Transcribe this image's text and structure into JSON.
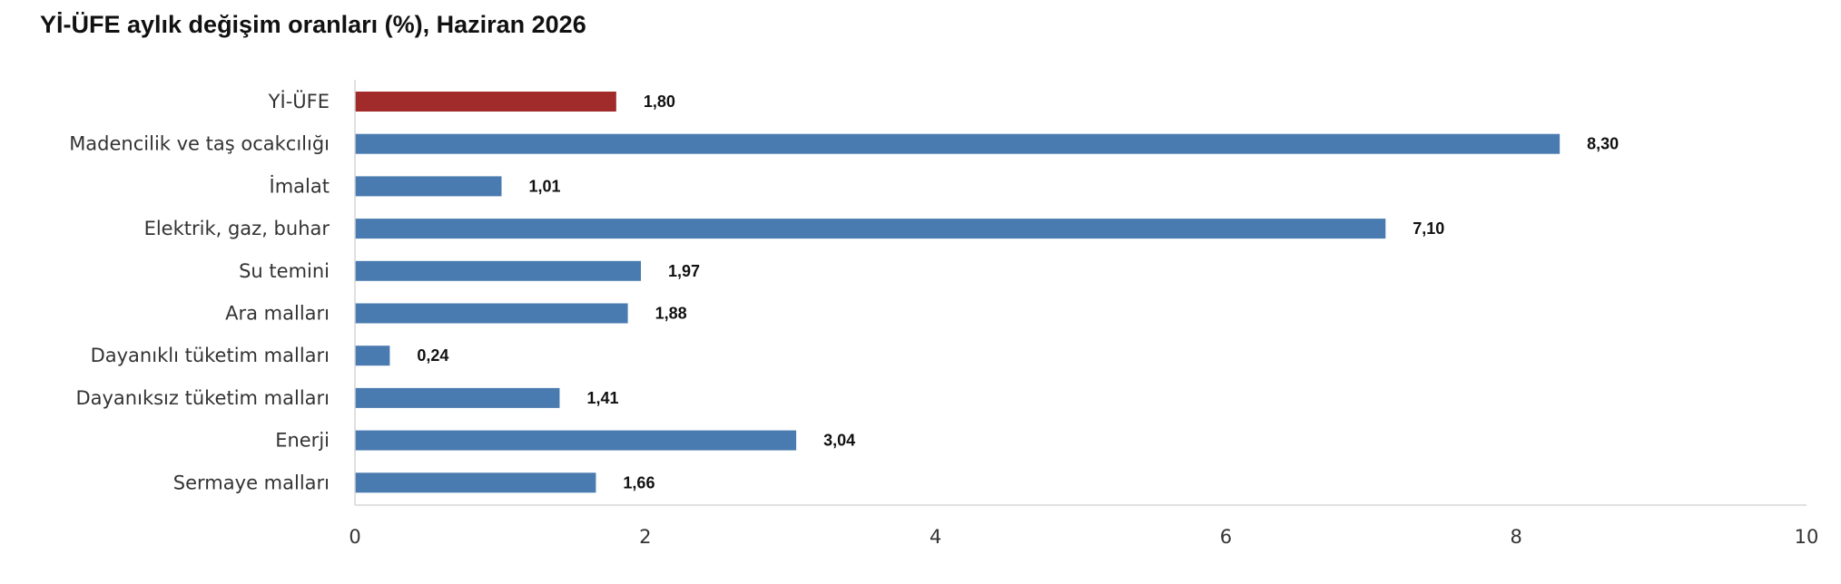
{
  "chart_data": {
    "type": "bar",
    "orientation": "horizontal",
    "title": "Yİ-ÜFE aylık değişim oranları (%), Haziran 2026",
    "categories": [
      "Yİ-ÜFE",
      "Madencilik ve taş ocakcılığı",
      "İmalat",
      "Elektrik, gaz, buhar",
      "Su temini",
      "Ara malları",
      "Dayanıklı tüketim malları",
      "Dayanıksız tüketim malları",
      "Enerji",
      "Sermaye malları"
    ],
    "values": [
      1.8,
      8.3,
      1.01,
      7.1,
      1.97,
      1.88,
      0.24,
      1.41,
      3.04,
      1.66
    ],
    "value_labels": [
      "1,80",
      "8,30",
      "1,01",
      "7,10",
      "1,97",
      "1,88",
      "0,24",
      "1,41",
      "3,04",
      "1,66"
    ],
    "xlim": [
      0,
      10
    ],
    "xticks": [
      0,
      2,
      4,
      6,
      8,
      10
    ],
    "grid": false,
    "colors": {
      "highlight": "#A12A2A",
      "default": "#4A7BB0",
      "axis": "#D5D5D5"
    },
    "highlight_categories": [
      "Yİ-ÜFE"
    ]
  }
}
